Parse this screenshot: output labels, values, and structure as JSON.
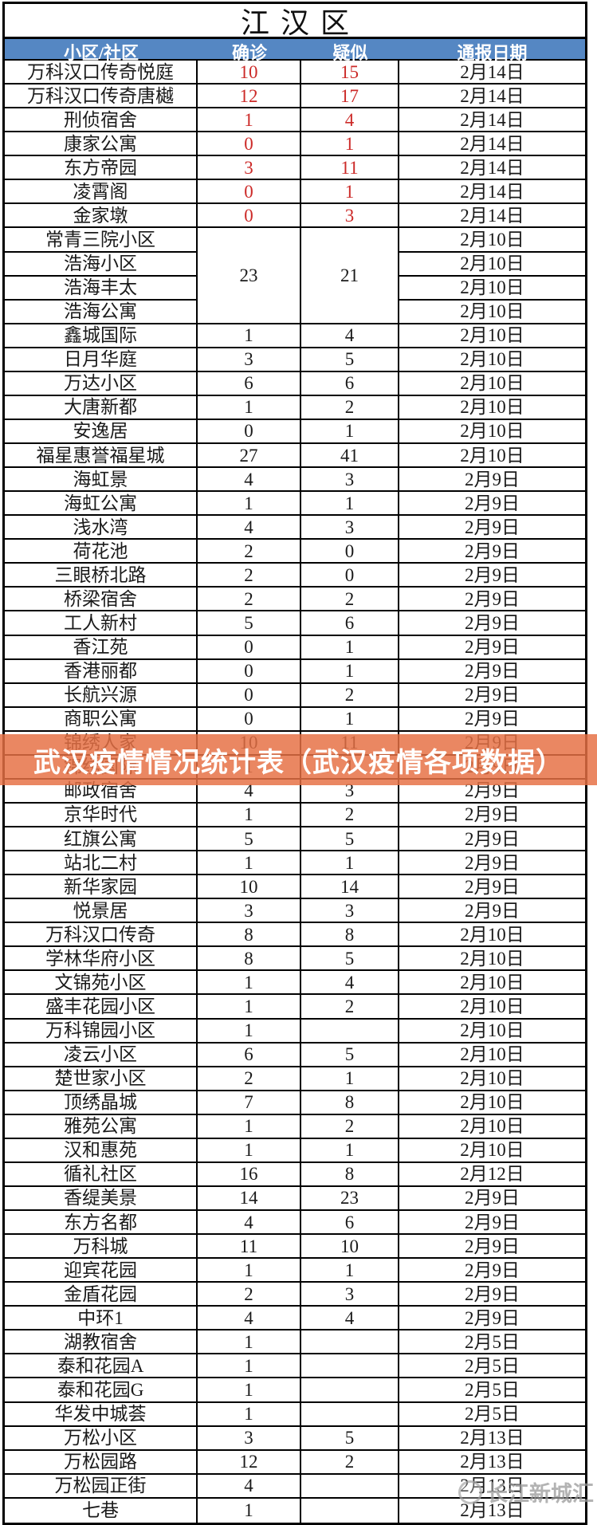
{
  "district": {
    "title": "江汉区"
  },
  "table": {
    "headers": [
      "小区/社区",
      "确诊",
      "疑似",
      "通报日期"
    ],
    "rows": [
      {
        "name": "万科汉口传奇悦庭",
        "confirmed": "10",
        "suspected": "15",
        "date": "2月14日",
        "red": true
      },
      {
        "name": "万科汉口传奇唐樾",
        "confirmed": "12",
        "suspected": "17",
        "date": "2月14日",
        "red": true
      },
      {
        "name": "刑侦宿舍",
        "confirmed": "1",
        "suspected": "4",
        "date": "2月14日",
        "red": true
      },
      {
        "name": "康家公寓",
        "confirmed": "0",
        "suspected": "1",
        "date": "2月14日",
        "red": true
      },
      {
        "name": "东方帝园",
        "confirmed": "3",
        "suspected": "11",
        "date": "2月14日",
        "red": true
      },
      {
        "name": "凌霄阁",
        "confirmed": "0",
        "suspected": "1",
        "date": "2月14日",
        "red": true
      },
      {
        "name": "金家墩",
        "confirmed": "0",
        "suspected": "3",
        "date": "2月14日",
        "red": true
      },
      {
        "name": "常青三院小区",
        "confirmed": "23",
        "suspected": "21",
        "date": "2月10日",
        "merge": 4
      },
      {
        "name": "浩海小区",
        "date": "2月10日",
        "inMerge": true
      },
      {
        "name": "浩海丰太",
        "date": "2月10日",
        "inMerge": true
      },
      {
        "name": "浩海公寓",
        "date": "2月10日",
        "inMerge": true
      },
      {
        "name": "鑫城国际",
        "confirmed": "1",
        "suspected": "4",
        "date": "2月10日"
      },
      {
        "name": "日月华庭",
        "confirmed": "3",
        "suspected": "5",
        "date": "2月10日"
      },
      {
        "name": "万达小区",
        "confirmed": "6",
        "suspected": "6",
        "date": "2月10日"
      },
      {
        "name": "大唐新都",
        "confirmed": "1",
        "suspected": "2",
        "date": "2月10日"
      },
      {
        "name": "安逸居",
        "confirmed": "0",
        "suspected": "1",
        "date": "2月10日"
      },
      {
        "name": "福星惠誉福星城",
        "confirmed": "27",
        "suspected": "41",
        "date": "2月10日"
      },
      {
        "name": "海虹景",
        "confirmed": "4",
        "suspected": "3",
        "date": "2月9日"
      },
      {
        "name": "海虹公寓",
        "confirmed": "1",
        "suspected": "1",
        "date": "2月9日"
      },
      {
        "name": "浅水湾",
        "confirmed": "4",
        "suspected": "3",
        "date": "2月9日"
      },
      {
        "name": "荷花池",
        "confirmed": "2",
        "suspected": "0",
        "date": "2月9日"
      },
      {
        "name": "三眼桥北路",
        "confirmed": "2",
        "suspected": "0",
        "date": "2月9日"
      },
      {
        "name": "桥梁宿舍",
        "confirmed": "2",
        "suspected": "2",
        "date": "2月9日"
      },
      {
        "name": "工人新村",
        "confirmed": "5",
        "suspected": "6",
        "date": "2月9日"
      },
      {
        "name": "香江苑",
        "confirmed": "0",
        "suspected": "1",
        "date": "2月9日"
      },
      {
        "name": "香港丽都",
        "confirmed": "0",
        "suspected": "1",
        "date": "2月9日"
      },
      {
        "name": "长航兴源",
        "confirmed": "0",
        "suspected": "2",
        "date": "2月9日"
      },
      {
        "name": "商职公寓",
        "confirmed": "0",
        "suspected": "1",
        "date": "2月9日"
      },
      {
        "name": "锦绣人家",
        "confirmed": "10",
        "suspected": "11",
        "date": "2月9日"
      },
      {
        "name": "锦绣国际",
        "confirmed": "1",
        "suspected": "1",
        "date": "2月9日"
      },
      {
        "name": "邮政宿舍",
        "confirmed": "4",
        "suspected": "3",
        "date": "2月9日"
      },
      {
        "name": "京华时代",
        "confirmed": "1",
        "suspected": "2",
        "date": "2月9日"
      },
      {
        "name": "红旗公寓",
        "confirmed": "5",
        "suspected": "5",
        "date": "2月9日"
      },
      {
        "name": "站北二村",
        "confirmed": "1",
        "suspected": "1",
        "date": "2月9日"
      },
      {
        "name": "新华家园",
        "confirmed": "10",
        "suspected": "14",
        "date": "2月9日"
      },
      {
        "name": "悦景居",
        "confirmed": "3",
        "suspected": "3",
        "date": "2月9日"
      },
      {
        "name": "万科汉口传奇",
        "confirmed": "8",
        "suspected": "8",
        "date": "2月10日"
      },
      {
        "name": "学林华府小区",
        "confirmed": "8",
        "suspected": "5",
        "date": "2月10日"
      },
      {
        "name": "文锦苑小区",
        "confirmed": "1",
        "suspected": "4",
        "date": "2月10日"
      },
      {
        "name": "盛丰花园小区",
        "confirmed": "1",
        "suspected": "2",
        "date": "2月10日"
      },
      {
        "name": "万科锦园小区",
        "confirmed": "1",
        "suspected": "",
        "date": "2月10日"
      },
      {
        "name": "凌云小区",
        "confirmed": "6",
        "suspected": "5",
        "date": "2月10日"
      },
      {
        "name": "楚世家小区",
        "confirmed": "2",
        "suspected": "1",
        "date": "2月10日"
      },
      {
        "name": "顶绣晶城",
        "confirmed": "7",
        "suspected": "8",
        "date": "2月10日"
      },
      {
        "name": "雅苑公寓",
        "confirmed": "1",
        "suspected": "2",
        "date": "2月10日"
      },
      {
        "name": "汉和惠苑",
        "confirmed": "1",
        "suspected": "1",
        "date": "2月10日"
      },
      {
        "name": "循礼社区",
        "confirmed": "16",
        "suspected": "8",
        "date": "2月12日"
      },
      {
        "name": "香缇美景",
        "confirmed": "14",
        "suspected": "23",
        "date": "2月9日"
      },
      {
        "name": "东方名都",
        "confirmed": "4",
        "suspected": "6",
        "date": "2月9日"
      },
      {
        "name": "万科城",
        "confirmed": "11",
        "suspected": "10",
        "date": "2月9日"
      },
      {
        "name": "迎宾花园",
        "confirmed": "1",
        "suspected": "1",
        "date": "2月9日"
      },
      {
        "name": "金盾花园",
        "confirmed": "2",
        "suspected": "3",
        "date": "2月9日"
      },
      {
        "name": "中环1",
        "confirmed": "4",
        "suspected": "4",
        "date": "2月9日"
      },
      {
        "name": "湖教宿舍",
        "confirmed": "1",
        "suspected": "",
        "date": "2月5日"
      },
      {
        "name": "泰和花园A",
        "confirmed": "1",
        "suspected": "",
        "date": "2月5日"
      },
      {
        "name": "泰和花园G",
        "confirmed": "1",
        "suspected": "",
        "date": "2月5日"
      },
      {
        "name": "华发中城荟",
        "confirmed": "1",
        "suspected": "",
        "date": "2月5日"
      },
      {
        "name": "万松小区",
        "confirmed": "3",
        "suspected": "5",
        "date": "2月13日"
      },
      {
        "name": "万松园路",
        "confirmed": "12",
        "suspected": "2",
        "date": "2月13日"
      },
      {
        "name": "万松园正街",
        "confirmed": "4",
        "suspected": "",
        "date": "2月13日"
      },
      {
        "name": "七巷",
        "confirmed": "1",
        "suspected": "",
        "date": "2月13日"
      }
    ]
  },
  "banner": {
    "title": "武汉疫情情况统计表（武汉疫情各项数据）"
  },
  "watermark": {
    "text": "长江新城汇"
  },
  "colors": {
    "header_bg": "#5587c3",
    "red_value": "#cc2a28",
    "banner_bg": "rgba(230,112,68,0.84)",
    "border": "#000000"
  }
}
